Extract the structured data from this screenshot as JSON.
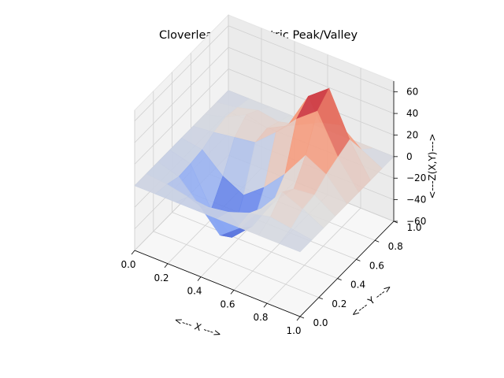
{
  "chart_data": {
    "type": "surface3d",
    "title": "Cloverleaf Asymmetric Peak/Valley",
    "xlabel": "<--- X --->",
    "ylabel": "<--- Y --->",
    "zlabel": "<---Z(X,Y)--->",
    "xlim": [
      0.0,
      1.0
    ],
    "ylim": [
      0.0,
      1.0
    ],
    "zlim": [
      -60,
      70
    ],
    "x_ticks": [
      "0.0",
      "0.2",
      "0.4",
      "0.6",
      "0.8",
      "1.0"
    ],
    "y_ticks": [
      "0.0",
      "0.2",
      "0.4",
      "0.6",
      "0.8",
      "1.0"
    ],
    "z_ticks": [
      "−60",
      "−40",
      "−20",
      "0",
      "20",
      "40",
      "60"
    ],
    "z_tick_values": [
      -60,
      -40,
      -20,
      0,
      20,
      40,
      60
    ],
    "colormap": "coolwarm",
    "grid": true,
    "surface_samples": {
      "x": [
        0.0,
        0.125,
        0.25,
        0.375,
        0.5,
        0.625,
        0.75,
        0.875,
        1.0
      ],
      "y": [
        0.0,
        0.125,
        0.25,
        0.375,
        0.5,
        0.625,
        0.75,
        0.875,
        1.0
      ],
      "z": [
        [
          0,
          0,
          0,
          0,
          0,
          0,
          0,
          0,
          0
        ],
        [
          0,
          -2,
          -6,
          -8,
          -5,
          2,
          6,
          3,
          0
        ],
        [
          0,
          -6,
          -25,
          -45,
          -30,
          -5,
          18,
          10,
          0
        ],
        [
          0,
          -5,
          -40,
          -58,
          -40,
          -10,
          10,
          12,
          0
        ],
        [
          0,
          -3,
          -20,
          -30,
          -15,
          5,
          30,
          20,
          0
        ],
        [
          0,
          2,
          5,
          8,
          25,
          45,
          60,
          25,
          0
        ],
        [
          0,
          5,
          15,
          10,
          20,
          55,
          70,
          30,
          0
        ],
        [
          0,
          3,
          8,
          5,
          10,
          20,
          25,
          10,
          0
        ],
        [
          0,
          0,
          0,
          0,
          0,
          0,
          0,
          0,
          0
        ]
      ]
    }
  }
}
